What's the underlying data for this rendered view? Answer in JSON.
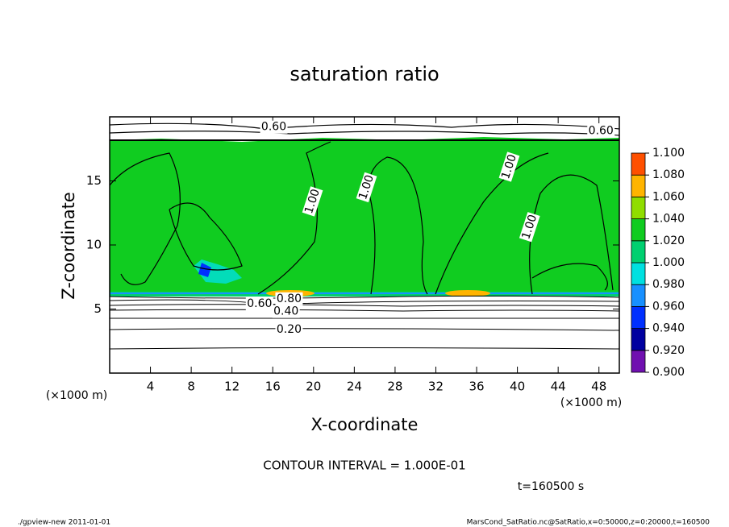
{
  "chart_data": {
    "type": "contour",
    "title": "saturation ratio",
    "xlabel": "X-coordinate",
    "ylabel": "Z-coordinate",
    "x_unit": "(×1000 m)",
    "y_unit": "(×1000 m)",
    "xlim": [
      0,
      50
    ],
    "xticks": [
      4,
      8,
      12,
      16,
      20,
      24,
      28,
      32,
      36,
      40,
      44,
      48
    ],
    "ylim": [
      0,
      20
    ],
    "yticks": [
      5,
      10,
      15
    ],
    "colorbar": {
      "levels": [
        {
          "value": 0.9,
          "label": "0.900"
        },
        {
          "value": 0.92,
          "label": "0.920"
        },
        {
          "value": 0.94,
          "label": "0.940"
        },
        {
          "value": 0.96,
          "label": "0.960"
        },
        {
          "value": 0.98,
          "label": "0.980"
        },
        {
          "value": 1.0,
          "label": "1.000"
        },
        {
          "value": 1.02,
          "label": "1.020"
        },
        {
          "value": 1.04,
          "label": "1.040"
        },
        {
          "value": 1.06,
          "label": "1.060"
        },
        {
          "value": 1.08,
          "label": "1.080"
        },
        {
          "value": 1.1,
          "label": "1.100"
        }
      ],
      "colors": [
        "#7010b0",
        "#0000a0",
        "#0030ff",
        "#1890ff",
        "#00e0e0",
        "#00d070",
        "#10cc20",
        "#90dd00",
        "#ffb400",
        "#ff5000"
      ]
    },
    "contour_labels": [
      {
        "value": 0.6,
        "label": "0.60",
        "x": 16.1,
        "y": 19.2
      },
      {
        "value": 0.6,
        "label": "0.60",
        "x": 48.2,
        "y": 18.9
      },
      {
        "value": 1.0,
        "label": "1.00",
        "x": 19.9,
        "y": 13.4
      },
      {
        "value": 1.0,
        "label": "1.00",
        "x": 25.2,
        "y": 14.5
      },
      {
        "value": 1.0,
        "label": "1.00",
        "x": 39.2,
        "y": 16.1
      },
      {
        "value": 1.0,
        "label": "1.00",
        "x": 41.2,
        "y": 11.4
      },
      {
        "value": 0.8,
        "label": "0.80",
        "x": 17.6,
        "y": 5.8
      },
      {
        "value": 0.6,
        "label": "0.60",
        "x": 14.7,
        "y": 5.4
      },
      {
        "value": 0.4,
        "label": "0.40",
        "x": 17.3,
        "y": 4.8
      },
      {
        "value": 0.2,
        "label": "0.20",
        "x": 17.6,
        "y": 3.4
      }
    ],
    "contour_interval": "CONTOUR INTERVAL = 1.000E-01",
    "time": "t=160500 s",
    "footer_left": "./gpview-new  2011-01-01",
    "footer_right": "MarsCond_SatRatio.nc@SatRatio,x=0:50000,z=0:20000,t=160500"
  }
}
